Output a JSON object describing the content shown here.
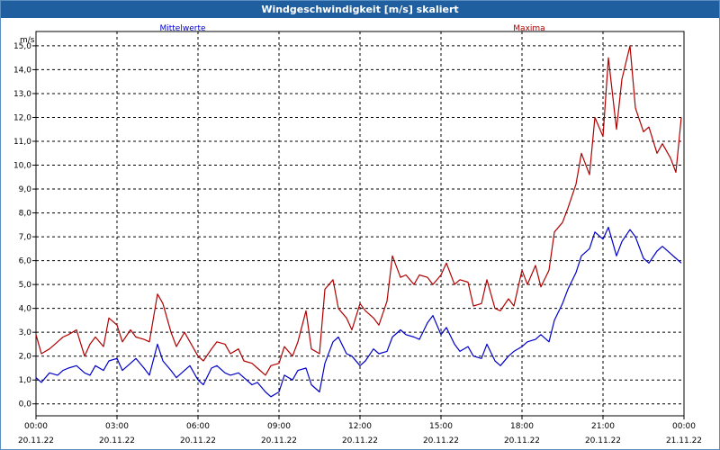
{
  "window": {
    "title": "Windgeschwindigkeit [m/s] skaliert"
  },
  "colors": {
    "titlebar_bg": "#1f5f9f",
    "mean_series": "#0000c8",
    "max_series": "#b00000",
    "grid": "#000000",
    "frame": "#5a8fc0"
  },
  "chart_data": {
    "type": "line",
    "title": "Windgeschwindigkeit [m/s] skaliert",
    "ylabel": "m/s",
    "xlabel": "",
    "ylim": [
      -0.5,
      15.6
    ],
    "y_ticks": [
      "0,0",
      "1,0",
      "2,0",
      "3,0",
      "4,0",
      "5,0",
      "6,0",
      "7,0",
      "8,0",
      "9,0",
      "10,0",
      "11,0",
      "12,0",
      "13,0",
      "14,0",
      "15,0"
    ],
    "x_ticks": [
      {
        "time": "00:00",
        "date": "20.11.22"
      },
      {
        "time": "03:00",
        "date": "20.11.22"
      },
      {
        "time": "06:00",
        "date": "20.11.22"
      },
      {
        "time": "09:00",
        "date": "20.11.22"
      },
      {
        "time": "12:00",
        "date": "20.11.22"
      },
      {
        "time": "15:00",
        "date": "20.11.22"
      },
      {
        "time": "18:00",
        "date": "20.11.22"
      },
      {
        "time": "21:00",
        "date": "20.11.22"
      },
      {
        "time": "00:00",
        "date": "21.11.22"
      }
    ],
    "grid": true,
    "legend_placement": "top",
    "series": [
      {
        "name": "Mittelwerte",
        "color": "#0000c8",
        "x_hours": [
          0,
          0.2,
          0.5,
          0.8,
          1.0,
          1.2,
          1.5,
          1.8,
          2.0,
          2.2,
          2.5,
          2.7,
          3.0,
          3.2,
          3.5,
          3.7,
          4.0,
          4.2,
          4.5,
          4.7,
          5.0,
          5.2,
          5.5,
          5.7,
          6.0,
          6.2,
          6.5,
          6.7,
          7.0,
          7.2,
          7.5,
          7.7,
          8.0,
          8.2,
          8.5,
          8.7,
          9.0,
          9.2,
          9.5,
          9.7,
          10.0,
          10.2,
          10.5,
          10.7,
          11.0,
          11.2,
          11.5,
          11.7,
          12.0,
          12.2,
          12.5,
          12.7,
          13.0,
          13.2,
          13.5,
          13.7,
          14.0,
          14.2,
          14.5,
          14.7,
          15.0,
          15.2,
          15.5,
          15.7,
          16.0,
          16.2,
          16.5,
          16.7,
          17.0,
          17.2,
          17.5,
          17.7,
          18.0,
          18.2,
          18.5,
          18.7,
          19.0,
          19.2,
          19.5,
          19.7,
          20.0,
          20.2,
          20.5,
          20.7,
          21.0,
          21.2,
          21.5,
          21.7,
          22.0,
          22.2,
          22.5,
          22.7,
          23.0,
          23.2,
          23.5,
          23.7,
          23.9
        ],
        "values": [
          1.1,
          0.9,
          1.3,
          1.2,
          1.4,
          1.5,
          1.6,
          1.3,
          1.2,
          1.6,
          1.4,
          1.8,
          1.9,
          1.4,
          1.7,
          1.9,
          1.5,
          1.2,
          2.5,
          1.8,
          1.4,
          1.1,
          1.4,
          1.6,
          1.0,
          0.8,
          1.5,
          1.6,
          1.3,
          1.2,
          1.3,
          1.1,
          0.8,
          0.9,
          0.5,
          0.3,
          0.5,
          1.2,
          1.0,
          1.4,
          1.5,
          0.8,
          0.5,
          1.7,
          2.6,
          2.8,
          2.1,
          2.0,
          1.6,
          1.8,
          2.3,
          2.1,
          2.2,
          2.8,
          3.1,
          2.9,
          2.8,
          2.7,
          3.4,
          3.7,
          2.9,
          3.2,
          2.5,
          2.2,
          2.4,
          2.0,
          1.9,
          2.5,
          1.8,
          1.6,
          2.0,
          2.2,
          2.4,
          2.6,
          2.7,
          2.9,
          2.6,
          3.5,
          4.2,
          4.8,
          5.5,
          6.2,
          6.5,
          7.2,
          6.9,
          7.4,
          6.2,
          6.8,
          7.3,
          7.0,
          6.1,
          5.9,
          6.4,
          6.6,
          6.3,
          6.1,
          5.9
        ]
      },
      {
        "name": "Maxima",
        "color": "#b00000",
        "x_hours": [
          0,
          0.2,
          0.5,
          0.8,
          1.0,
          1.2,
          1.5,
          1.8,
          2.0,
          2.2,
          2.5,
          2.7,
          3.0,
          3.2,
          3.5,
          3.7,
          4.0,
          4.2,
          4.5,
          4.7,
          5.0,
          5.2,
          5.5,
          5.7,
          6.0,
          6.2,
          6.5,
          6.7,
          7.0,
          7.2,
          7.5,
          7.7,
          8.0,
          8.2,
          8.5,
          8.7,
          9.0,
          9.2,
          9.5,
          9.7,
          10.0,
          10.2,
          10.5,
          10.7,
          11.0,
          11.2,
          11.5,
          11.7,
          12.0,
          12.2,
          12.5,
          12.7,
          13.0,
          13.2,
          13.5,
          13.7,
          14.0,
          14.2,
          14.5,
          14.7,
          15.0,
          15.2,
          15.5,
          15.7,
          16.0,
          16.2,
          16.5,
          16.7,
          17.0,
          17.2,
          17.5,
          17.7,
          18.0,
          18.2,
          18.5,
          18.7,
          19.0,
          19.2,
          19.5,
          19.7,
          20.0,
          20.2,
          20.5,
          20.7,
          21.0,
          21.2,
          21.5,
          21.7,
          22.0,
          22.2,
          22.5,
          22.7,
          23.0,
          23.2,
          23.5,
          23.7,
          23.9
        ],
        "values": [
          2.9,
          2.1,
          2.3,
          2.6,
          2.8,
          2.9,
          3.1,
          2.0,
          2.5,
          2.8,
          2.4,
          3.6,
          3.3,
          2.6,
          3.1,
          2.8,
          2.7,
          2.6,
          4.6,
          4.2,
          3.0,
          2.4,
          3.0,
          2.6,
          2.0,
          1.8,
          2.3,
          2.6,
          2.5,
          2.1,
          2.3,
          1.8,
          1.7,
          1.5,
          1.2,
          1.6,
          1.7,
          2.4,
          2.0,
          2.6,
          3.9,
          2.3,
          2.1,
          4.8,
          5.2,
          4.0,
          3.6,
          3.1,
          4.2,
          3.9,
          3.6,
          3.3,
          4.3,
          6.2,
          5.3,
          5.4,
          5.0,
          5.4,
          5.3,
          5.0,
          5.4,
          5.9,
          5.0,
          5.2,
          5.1,
          4.1,
          4.2,
          5.2,
          4.0,
          3.9,
          4.4,
          4.1,
          5.6,
          5.0,
          5.8,
          4.9,
          5.6,
          7.2,
          7.6,
          8.2,
          9.2,
          10.5,
          9.6,
          12.0,
          11.2,
          14.5,
          11.5,
          13.6,
          15.0,
          12.4,
          11.4,
          11.6,
          10.5,
          10.9,
          10.3,
          9.7,
          12.0
        ]
      }
    ]
  }
}
